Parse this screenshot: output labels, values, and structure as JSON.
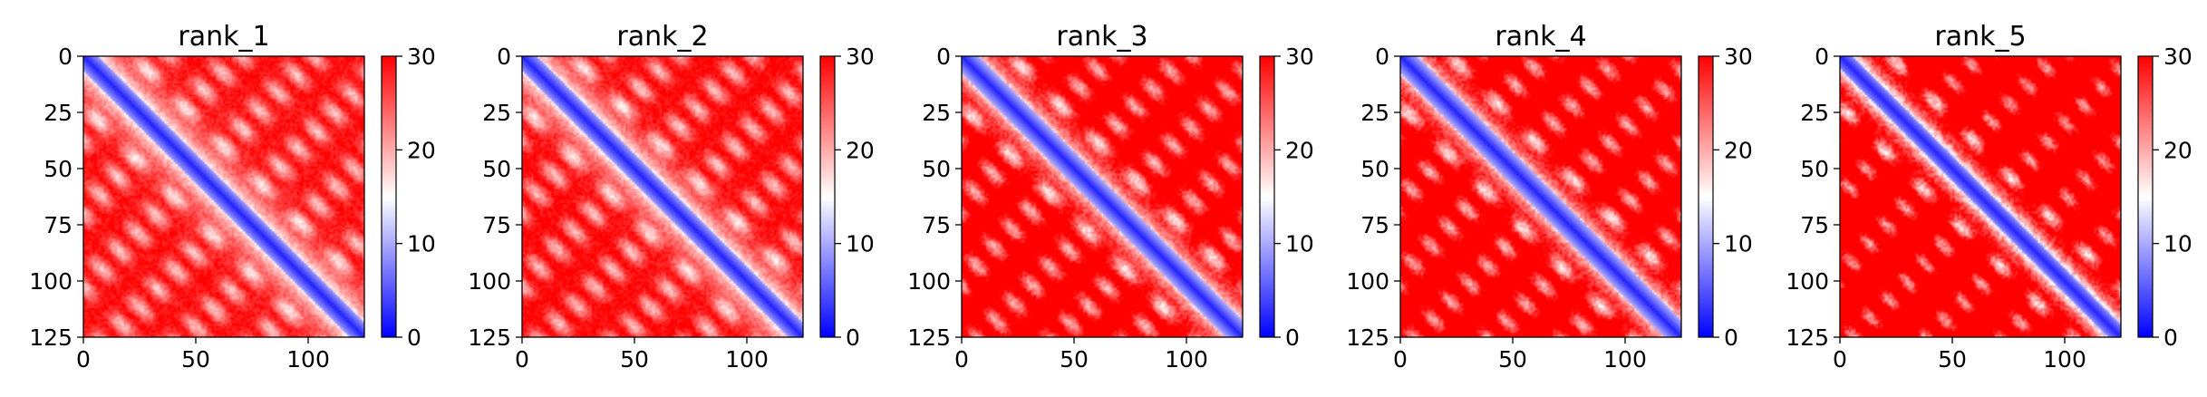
{
  "chart_data": [
    {
      "type": "heatmap",
      "title": "rank_1",
      "xlabel": "",
      "ylabel": "",
      "xlim": [
        0,
        125
      ],
      "ylim": [
        125,
        0
      ],
      "xticks": [
        0,
        50,
        100
      ],
      "yticks": [
        0,
        25,
        50,
        75,
        100,
        125
      ],
      "matrix_size": 125,
      "colorbar": {
        "cmap": "bwr",
        "vmin": 0,
        "vmax": 30,
        "ticks": [
          0,
          10,
          20,
          30
        ]
      },
      "contrast": 0.95,
      "diagonal_band": 6
    },
    {
      "type": "heatmap",
      "title": "rank_2",
      "xlabel": "",
      "ylabel": "",
      "xlim": [
        0,
        125
      ],
      "ylim": [
        125,
        0
      ],
      "xticks": [
        0,
        50,
        100
      ],
      "yticks": [
        0,
        25,
        50,
        75,
        100,
        125
      ],
      "matrix_size": 125,
      "colorbar": {
        "cmap": "bwr",
        "vmin": 0,
        "vmax": 30,
        "ticks": [
          0,
          10,
          20,
          30
        ]
      },
      "contrast": 1.0,
      "diagonal_band": 6
    },
    {
      "type": "heatmap",
      "title": "rank_3",
      "xlabel": "",
      "ylabel": "",
      "xlim": [
        0,
        125
      ],
      "ylim": [
        125,
        0
      ],
      "xticks": [
        0,
        50,
        100
      ],
      "yticks": [
        0,
        25,
        50,
        75,
        100,
        125
      ],
      "matrix_size": 125,
      "colorbar": {
        "cmap": "bwr",
        "vmin": 0,
        "vmax": 30,
        "ticks": [
          0,
          10,
          20,
          30
        ]
      },
      "contrast": 1.25,
      "diagonal_band": 7
    },
    {
      "type": "heatmap",
      "title": "rank_4",
      "xlabel": "",
      "ylabel": "",
      "xlim": [
        0,
        125
      ],
      "ylim": [
        125,
        0
      ],
      "xticks": [
        0,
        50,
        100
      ],
      "yticks": [
        0,
        25,
        50,
        75,
        100,
        125
      ],
      "matrix_size": 125,
      "colorbar": {
        "cmap": "bwr",
        "vmin": 0,
        "vmax": 30,
        "ticks": [
          0,
          10,
          20,
          30
        ]
      },
      "contrast": 1.35,
      "diagonal_band": 7
    },
    {
      "type": "heatmap",
      "title": "rank_5",
      "xlabel": "",
      "ylabel": "",
      "xlim": [
        0,
        125
      ],
      "ylim": [
        125,
        0
      ],
      "xticks": [
        0,
        50,
        100
      ],
      "yticks": [
        0,
        25,
        50,
        75,
        100,
        125
      ],
      "matrix_size": 125,
      "colorbar": {
        "cmap": "bwr",
        "vmin": 0,
        "vmax": 30,
        "ticks": [
          0,
          10,
          20,
          30
        ]
      },
      "contrast": 1.6,
      "diagonal_band": 5
    }
  ]
}
